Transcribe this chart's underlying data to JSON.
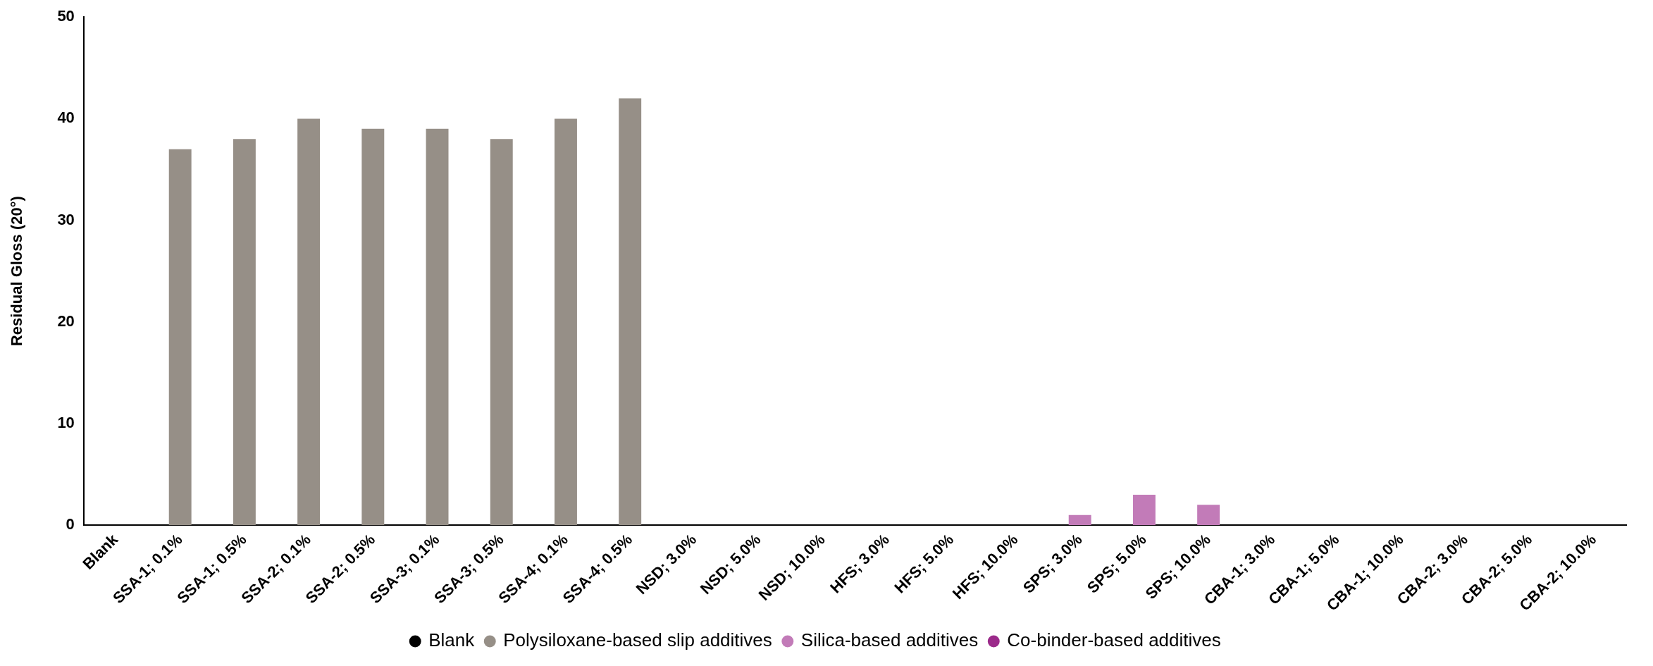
{
  "chart_data": {
    "type": "bar",
    "ylabel": "Residual Gloss (20°)",
    "categories": [
      "Blank",
      "SSA-1; 0.1%",
      "SSA-1; 0.5%",
      "SSA-2; 0.1%",
      "SSA-2; 0.5%",
      "SSA-3; 0.1%",
      "SSA-3; 0.5%",
      "SSA-4; 0.1%",
      "SSA-4; 0.5%",
      "NSD; 3.0%",
      "NSD; 5.0%",
      "NSD; 10.0%",
      "HFS; 3.0%",
      "HFS; 5.0%",
      "HFS; 10.0%",
      "SPS; 3.0%",
      "SPS; 5.0%",
      "SPS; 10.0%",
      "CBA-1; 3.0%",
      "CBA-1; 5.0%",
      "CBA-1; 10.0%",
      "CBA-2; 3.0%",
      "CBA-2; 5.0%",
      "CBA-2; 10.0%"
    ],
    "series": [
      {
        "name": "Blank",
        "color": "#000000",
        "values": [
          0,
          null,
          null,
          null,
          null,
          null,
          null,
          null,
          null,
          null,
          null,
          null,
          null,
          null,
          null,
          null,
          null,
          null,
          null,
          null,
          null,
          null,
          null,
          null
        ]
      },
      {
        "name": "Polysiloxane-based slip additives",
        "color": "#968f87",
        "values": [
          null,
          37,
          38,
          40,
          39,
          39,
          38,
          40,
          42,
          null,
          null,
          null,
          null,
          null,
          null,
          null,
          null,
          null,
          null,
          null,
          null,
          null,
          null,
          null
        ]
      },
      {
        "name": "Silica-based additives",
        "color": "#c27bb8",
        "values": [
          null,
          null,
          null,
          null,
          null,
          null,
          null,
          null,
          null,
          0,
          0,
          0,
          0,
          0,
          0,
          1,
          3,
          2,
          null,
          null,
          null,
          null,
          null,
          null
        ]
      },
      {
        "name": "Co-binder-based additives",
        "color": "#9b2a8a",
        "values": [
          null,
          null,
          null,
          null,
          null,
          null,
          null,
          null,
          null,
          null,
          null,
          null,
          null,
          null,
          null,
          null,
          null,
          null,
          0,
          0,
          0,
          0,
          0,
          0
        ]
      }
    ],
    "ylim": [
      0,
      50
    ],
    "yticks": [
      0,
      10,
      20,
      30,
      40,
      50
    ],
    "grid": false,
    "legend": "bottom"
  }
}
